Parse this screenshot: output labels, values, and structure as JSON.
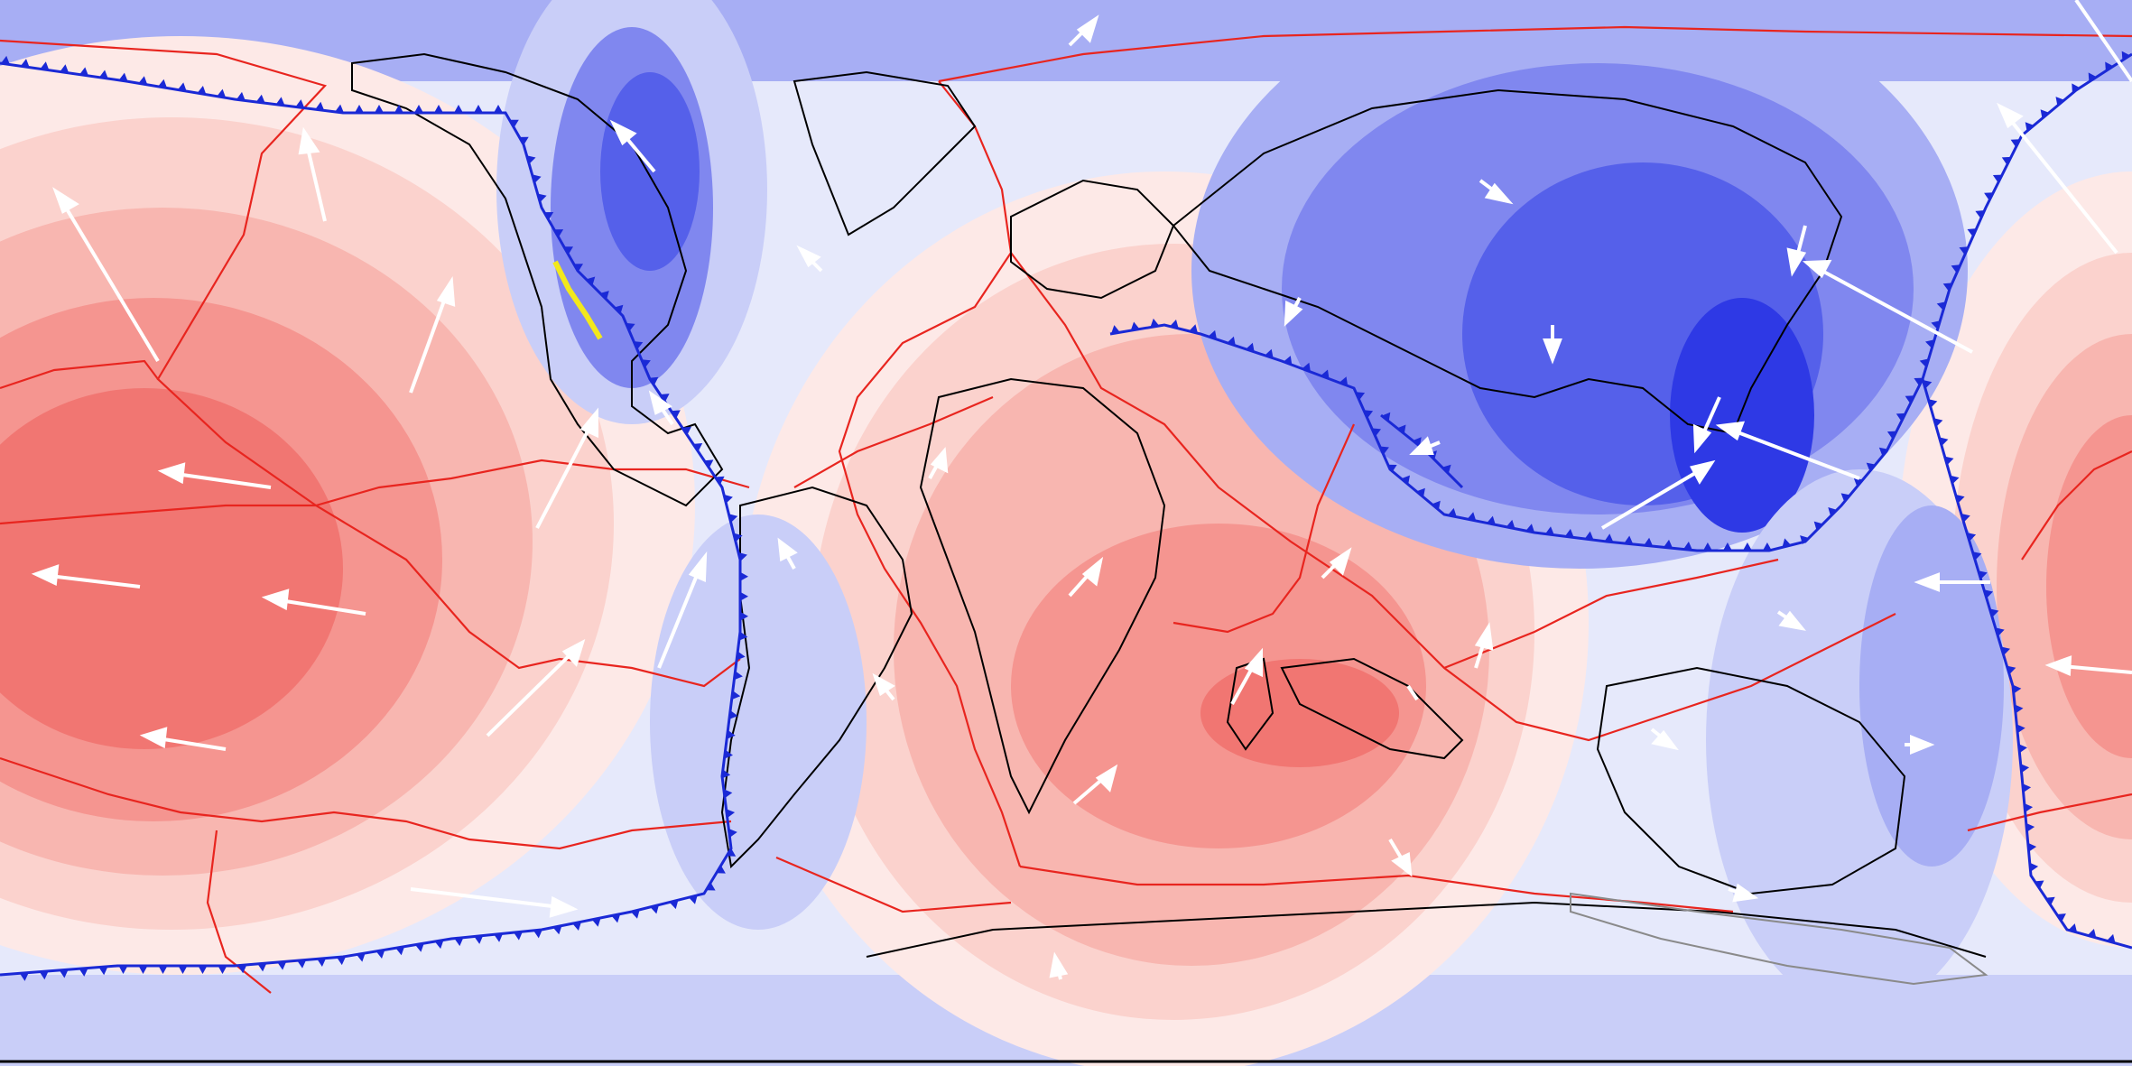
{
  "map": {
    "projection": "equirectangular-global",
    "text_labels": [],
    "legend": null
  },
  "colors": {
    "background": "#ffffff",
    "positive_field": [
      "#fde9e7",
      "#fbd2cd",
      "#f8b6b0",
      "#f59590",
      "#f17672"
    ],
    "negative_field": [
      "#e6e9fb",
      "#c9cef8",
      "#a7aef4",
      "#8087ef",
      "#5560ea",
      "#2e39e5"
    ],
    "coastline": "#000000",
    "plate_boundary": "#e8251f",
    "subduction_zone": "#1a29d6",
    "transform_fault": "#f2e81c",
    "velocity_vector": "#ffffff",
    "ice_shelf_outline": "#8a8a8a"
  },
  "features": {
    "velocity_vectors": "white-arrows",
    "plate_boundaries": "red-lines",
    "subduction_zones": "blue-toothed-lines",
    "coastlines": "black-outlines"
  }
}
